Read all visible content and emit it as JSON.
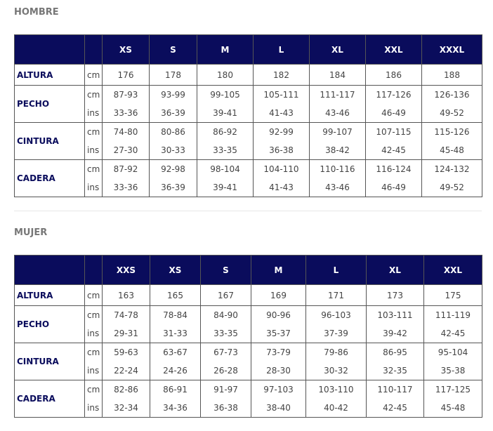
{
  "sections": [
    {
      "title": "HOMBRE",
      "headers": [
        "XS",
        "S",
        "M",
        "L",
        "XL",
        "XXL",
        "XXXL"
      ],
      "rows": [
        {
          "label": "ALTURA",
          "units": [
            "cm"
          ],
          "values": [
            [
              "176",
              "178",
              "180",
              "182",
              "184",
              "186",
              "188"
            ]
          ]
        },
        {
          "label": "PECHO",
          "units": [
            "cm",
            "ins"
          ],
          "values": [
            [
              "87-93",
              "93-99",
              "99-105",
              "105-111",
              "111-117",
              "117-126",
              "126-136"
            ],
            [
              "33-36",
              "36-39",
              "39-41",
              "41-43",
              "43-46",
              "46-49",
              "49-52"
            ]
          ]
        },
        {
          "label": "CINTURA",
          "units": [
            "cm",
            "ins"
          ],
          "values": [
            [
              "74-80",
              "80-86",
              "86-92",
              "92-99",
              "99-107",
              "107-115",
              "115-126"
            ],
            [
              "27-30",
              "30-33",
              "33-35",
              "36-38",
              "38-42",
              "42-45",
              "45-48"
            ]
          ]
        },
        {
          "label": "CADERA",
          "units": [
            "cm",
            "ins"
          ],
          "values": [
            [
              "87-92",
              "92-98",
              "98-104",
              "104-110",
              "110-116",
              "116-124",
              "124-132"
            ],
            [
              "33-36",
              "36-39",
              "39-41",
              "41-43",
              "43-46",
              "46-49",
              "49-52"
            ]
          ]
        }
      ]
    },
    {
      "title": "MUJER",
      "headers": [
        "XXS",
        "XS",
        "S",
        "M",
        "L",
        "XL",
        "XXL"
      ],
      "rows": [
        {
          "label": "ALTURA",
          "units": [
            "cm"
          ],
          "values": [
            [
              "163",
              "165",
              "167",
              "169",
              "171",
              "173",
              "175"
            ]
          ]
        },
        {
          "label": "PECHO",
          "units": [
            "cm",
            "ins"
          ],
          "values": [
            [
              "74-78",
              "78-84",
              "84-90",
              "90-96",
              "96-103",
              "103-111",
              "111-119"
            ],
            [
              "29-31",
              "31-33",
              "33-35",
              "35-37",
              "37-39",
              "39-42",
              "42-45"
            ]
          ]
        },
        {
          "label": "CINTURA",
          "units": [
            "cm",
            "ins"
          ],
          "values": [
            [
              "59-63",
              "63-67",
              "67-73",
              "73-79",
              "79-86",
              "86-95",
              "95-104"
            ],
            [
              "22-24",
              "24-26",
              "26-28",
              "28-30",
              "30-32",
              "32-35",
              "35-38"
            ]
          ]
        },
        {
          "label": "CADERA",
          "units": [
            "cm",
            "ins"
          ],
          "values": [
            [
              "82-86",
              "86-91",
              "91-97",
              "97-103",
              "103-110",
              "110-117",
              "117-125"
            ],
            [
              "32-34",
              "34-36",
              "36-38",
              "38-40",
              "40-42",
              "42-45",
              "45-48"
            ]
          ]
        }
      ]
    }
  ]
}
